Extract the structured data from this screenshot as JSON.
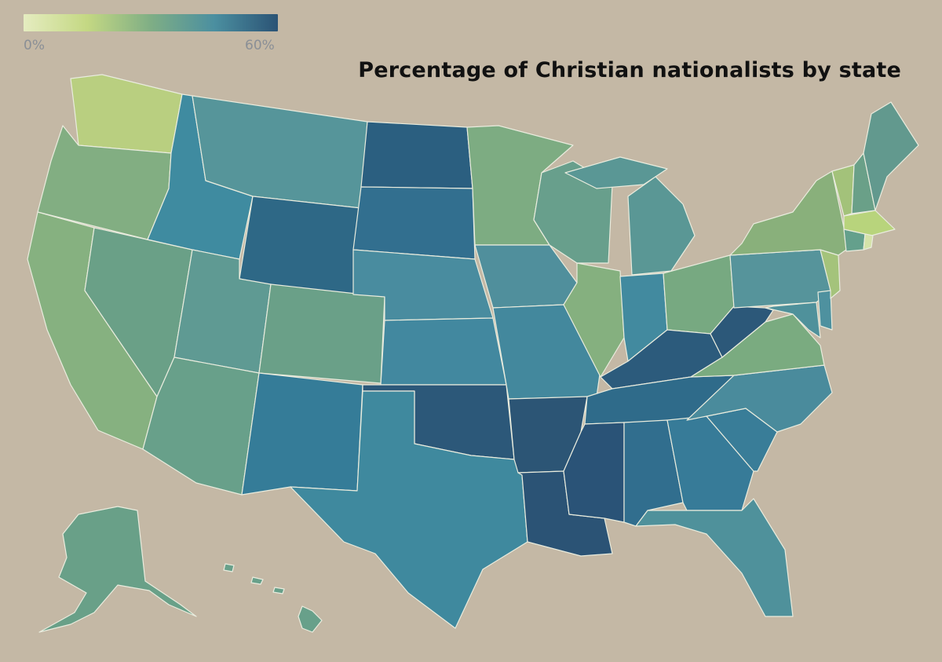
{
  "title": "Percentage of Christian nationalists by state",
  "legend": {
    "min_label": "0%",
    "max_label": "60%",
    "min_value": 0,
    "max_value": 60,
    "gradient_colors": [
      "#e5ecc0",
      "#c4d883",
      "#7fae85",
      "#4b8fa0",
      "#2b5375"
    ]
  },
  "states": {
    "WA": {
      "value": 11,
      "color": "#b9cf80"
    },
    "OR": {
      "value": 22,
      "color": "#82ae82"
    },
    "CA": {
      "value": 21,
      "color": "#86b180"
    },
    "NV": {
      "value": 27,
      "color": "#6aa087"
    },
    "ID": {
      "value": 39,
      "color": "#3f8ba0"
    },
    "MT": {
      "value": 33,
      "color": "#56959a"
    },
    "WY": {
      "value": 49,
      "color": "#2e6886"
    },
    "UT": {
      "value": 30,
      "color": "#5f9a93"
    },
    "AZ": {
      "value": 28,
      "color": "#68a08a"
    },
    "CO": {
      "value": 27,
      "color": "#6aa088"
    },
    "NM": {
      "value": 44,
      "color": "#357c98"
    },
    "ND": {
      "value": 53,
      "color": "#2b5f80"
    },
    "SD": {
      "value": 47,
      "color": "#326f8f"
    },
    "NE": {
      "value": 38,
      "color": "#498c9f"
    },
    "KS": {
      "value": 40,
      "color": "#42889f"
    },
    "OK": {
      "value": 55,
      "color": "#2c5879"
    },
    "TX": {
      "value": 41,
      "color": "#3f899e"
    },
    "MN": {
      "value": 23,
      "color": "#7dac82"
    },
    "IA": {
      "value": 36,
      "color": "#508f9c"
    },
    "MO": {
      "value": 41,
      "color": "#43889d"
    },
    "AR": {
      "value": 57,
      "color": "#2c5575"
    },
    "LA": {
      "value": 57,
      "color": "#2b5375"
    },
    "WI": {
      "value": 28,
      "color": "#689f8c"
    },
    "IL": {
      "value": 21,
      "color": "#85b07f"
    },
    "MI": {
      "value": 31,
      "color": "#5a9795"
    },
    "IN": {
      "value": 40,
      "color": "#428a9f"
    },
    "OH": {
      "value": 25,
      "color": "#77a981"
    },
    "KY": {
      "value": 54,
      "color": "#2c5b7c"
    },
    "TN": {
      "value": 49,
      "color": "#2f6b8a"
    },
    "MS": {
      "value": 57,
      "color": "#2a5377"
    },
    "AL": {
      "value": 48,
      "color": "#316e8e"
    },
    "GA": {
      "value": 45,
      "color": "#377b98"
    },
    "FL": {
      "value": 36,
      "color": "#4f919b"
    },
    "SC": {
      "value": 45,
      "color": "#397d98"
    },
    "NC": {
      "value": 38,
      "color": "#4a8b9c"
    },
    "VA": {
      "value": 24,
      "color": "#7aab80"
    },
    "WV": {
      "value": 56,
      "color": "#2c5879"
    },
    "PA": {
      "value": 35,
      "color": "#56949b"
    },
    "NY": {
      "value": 21,
      "color": "#89b07b"
    },
    "VT": {
      "value": 17,
      "color": "#a3c27a"
    },
    "NH": {
      "value": 28,
      "color": "#6aa088"
    },
    "ME": {
      "value": 30,
      "color": "#62998e"
    },
    "MA": {
      "value": 13,
      "color": "#b8d47c"
    },
    "RI": {
      "value": 5,
      "color": "#d5e3a9"
    },
    "CT": {
      "value": 30,
      "color": "#64a08c"
    },
    "NJ": {
      "value": 17,
      "color": "#a4c37b"
    },
    "DE": {
      "value": 38,
      "color": "#4e919f"
    },
    "MD": {
      "value": 37,
      "color": "#4f919b"
    },
    "AK": {
      "value": 29,
      "color": "#69a088"
    },
    "HI": {
      "value": 29,
      "color": "#68a08a"
    }
  }
}
